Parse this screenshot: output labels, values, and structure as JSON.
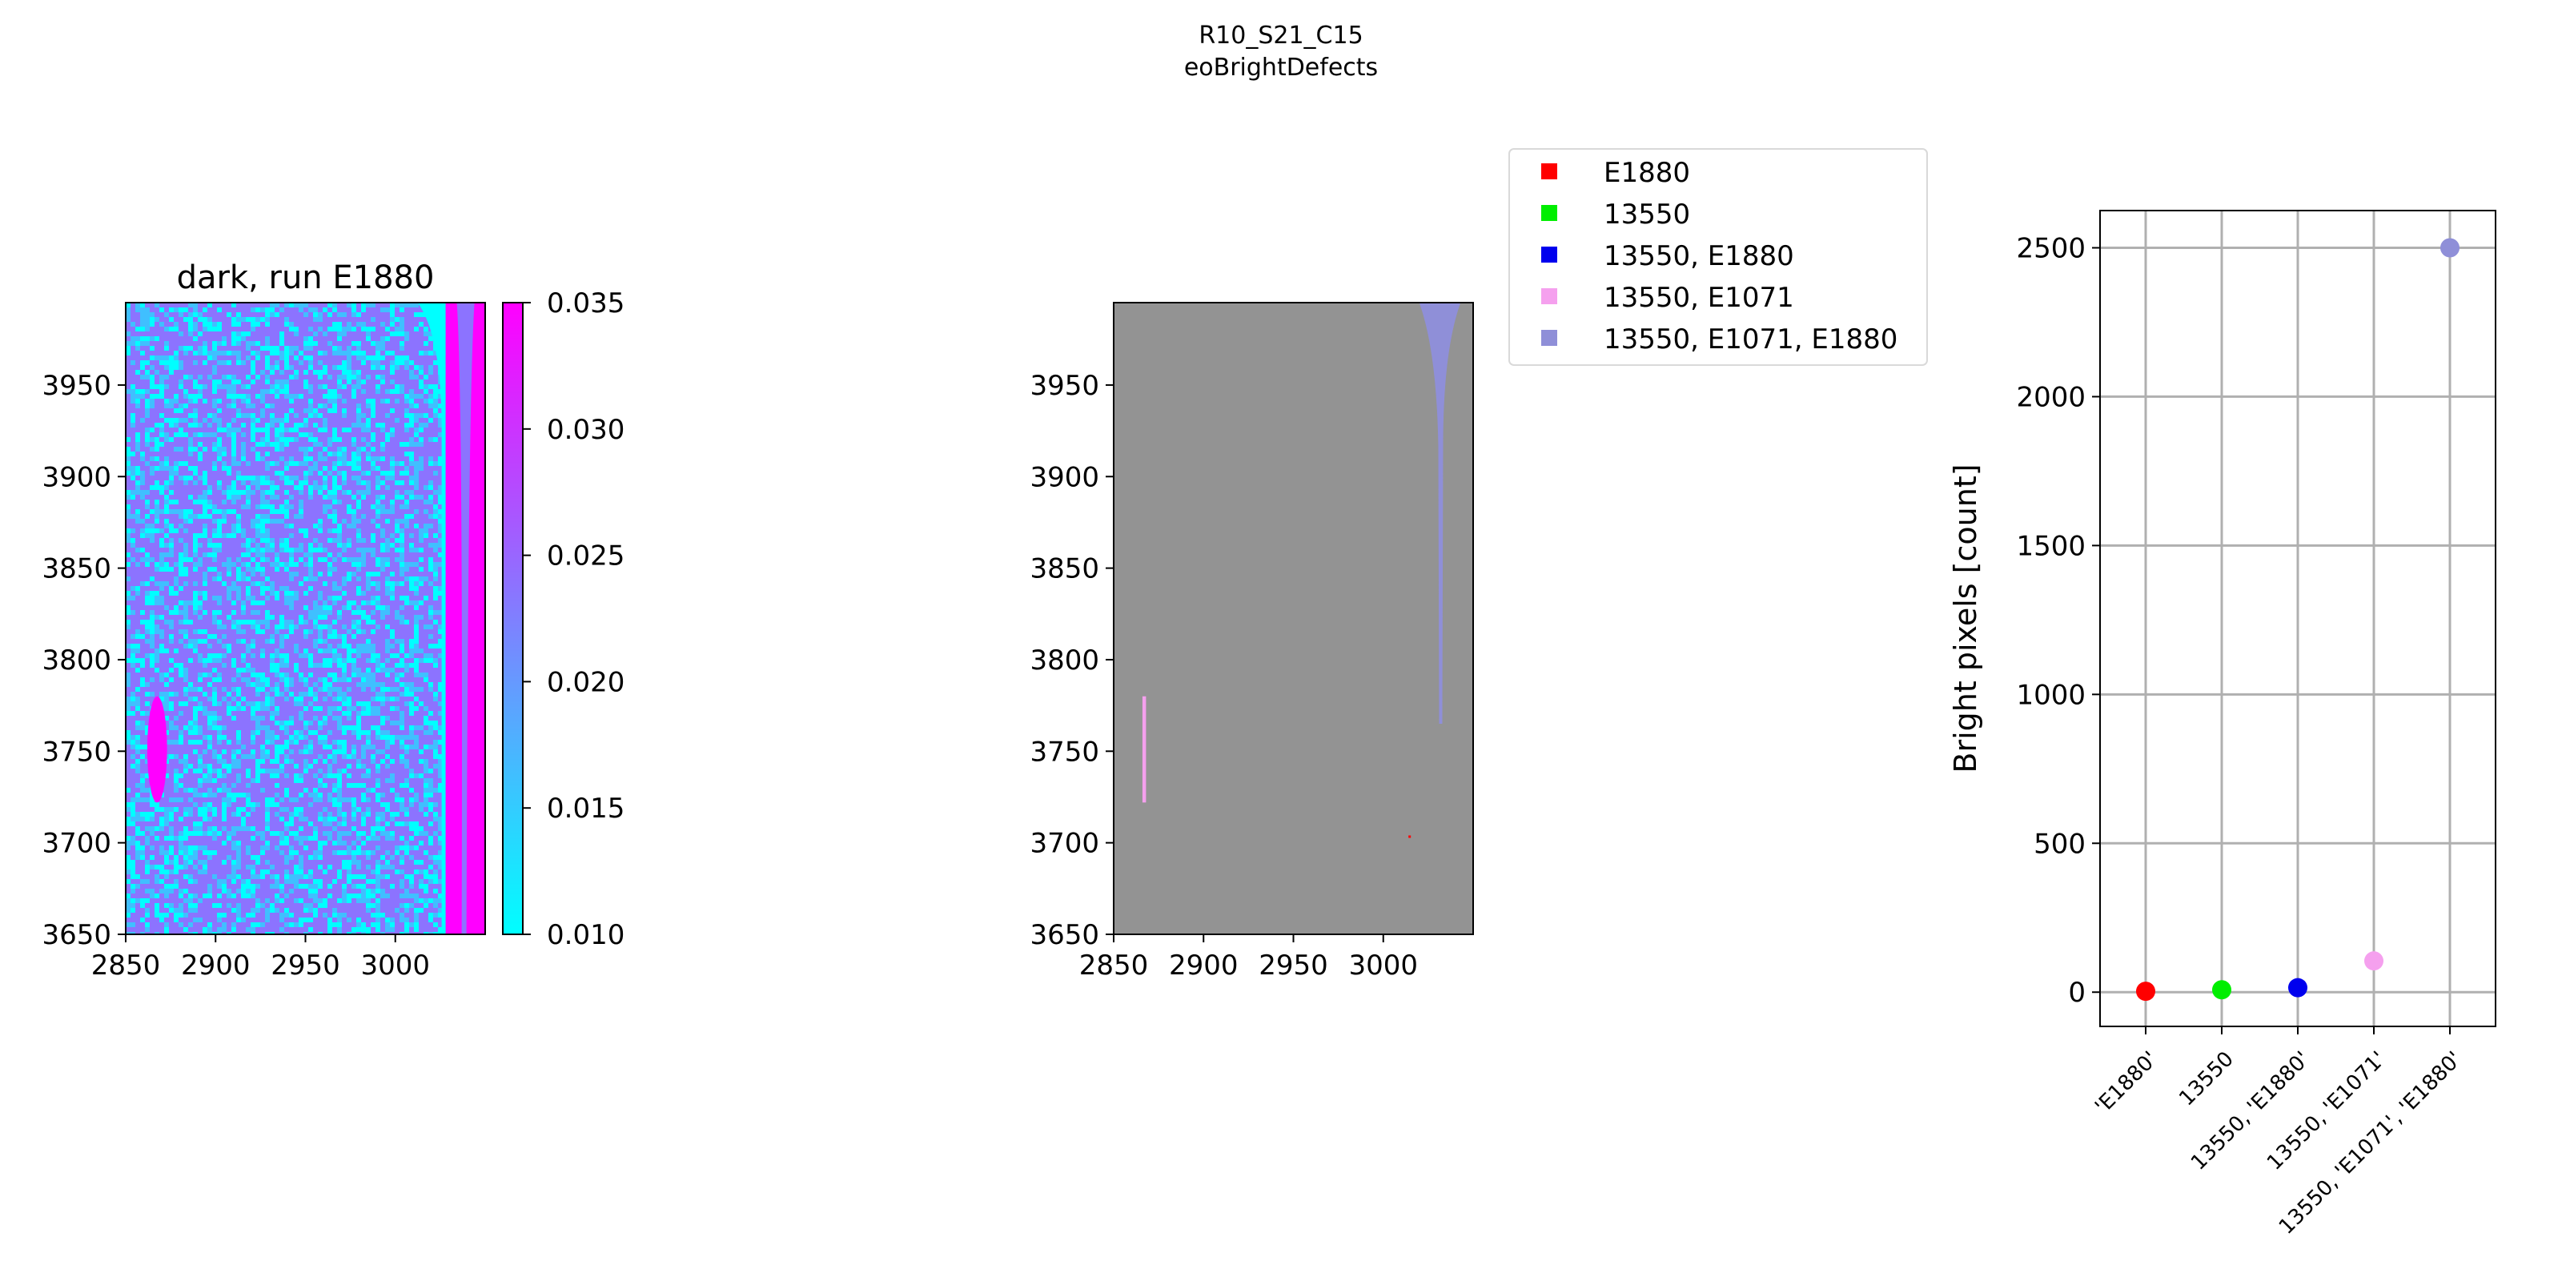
{
  "suptitle": {
    "line1": "R10_S21_C15",
    "line2": "eoBrightDefects"
  },
  "chart_data": [
    {
      "type": "heatmap",
      "title": "dark, run E1880",
      "xlim": [
        2850,
        3050
      ],
      "ylim": [
        3650,
        3995
      ],
      "xticks": [
        "2850",
        "2900",
        "2950",
        "3000"
      ],
      "yticks": [
        "3650",
        "3700",
        "3750",
        "3800",
        "3850",
        "3900",
        "3950"
      ],
      "colorbar": {
        "range": [
          0.01,
          0.035
        ],
        "ticks": [
          "0.010",
          "0.015",
          "0.020",
          "0.025",
          "0.030",
          "0.035"
        ],
        "colormap": "cool",
        "colors": [
          "#00ffff",
          "#ff00ff"
        ]
      },
      "features": [
        {
          "kind": "bright band",
          "x": [
            3028,
            3050
          ],
          "y": [
            3650,
            3995
          ]
        },
        {
          "kind": "bright spot",
          "x": [
            2862,
            2873
          ],
          "y": [
            3722,
            3780
          ]
        }
      ]
    },
    {
      "type": "heatmap",
      "title": "",
      "xlim": [
        2850,
        3050
      ],
      "ylim": [
        3650,
        3995
      ],
      "xticks": [
        "2850",
        "2900",
        "2950",
        "3000"
      ],
      "yticks": [
        "3650",
        "3700",
        "3750",
        "3800",
        "3850",
        "3900",
        "3950"
      ],
      "background_color": "#939393",
      "features": [
        {
          "kind": "defect column",
          "class": "13550, E1071, E1880",
          "x": [
            3020,
            3043
          ],
          "y": [
            3765,
            3995
          ]
        },
        {
          "kind": "defect column",
          "class": "13550, E1071",
          "x": [
            2866,
            2868
          ],
          "y": [
            3722,
            3780
          ]
        },
        {
          "kind": "defect pixel",
          "class": "E1880",
          "x": [
            3014,
            3015
          ],
          "y": [
            3703,
            3704
          ]
        }
      ],
      "legend": {
        "placement": "upper-right outside",
        "entries": [
          {
            "label": "E1880",
            "color": "#ff0000"
          },
          {
            "label": "13550",
            "color": "#00ee00"
          },
          {
            "label": "13550, E1880",
            "color": "#0000ee"
          },
          {
            "label": "13550, E1071",
            "color": "#f5a0ee"
          },
          {
            "label": "13550, E1071, E1880",
            "color": "#8f8fd8"
          }
        ]
      }
    },
    {
      "type": "scatter",
      "title": "",
      "ylabel": "Bright pixels [count]",
      "categories": [
        "'E1880'",
        "13550",
        "13550, 'E1880'",
        "13550, 'E1071'",
        "13550, 'E1071', 'E1880'"
      ],
      "values": [
        3,
        8,
        15,
        105,
        2500
      ],
      "colors": [
        "#ff0000",
        "#00ee00",
        "#0000ee",
        "#f5a0ee",
        "#8f8fd8"
      ],
      "ylim": [
        -115,
        2625
      ],
      "yticks": [
        "0",
        "500",
        "1000",
        "1500",
        "2000",
        "2500"
      ],
      "grid": true
    }
  ]
}
